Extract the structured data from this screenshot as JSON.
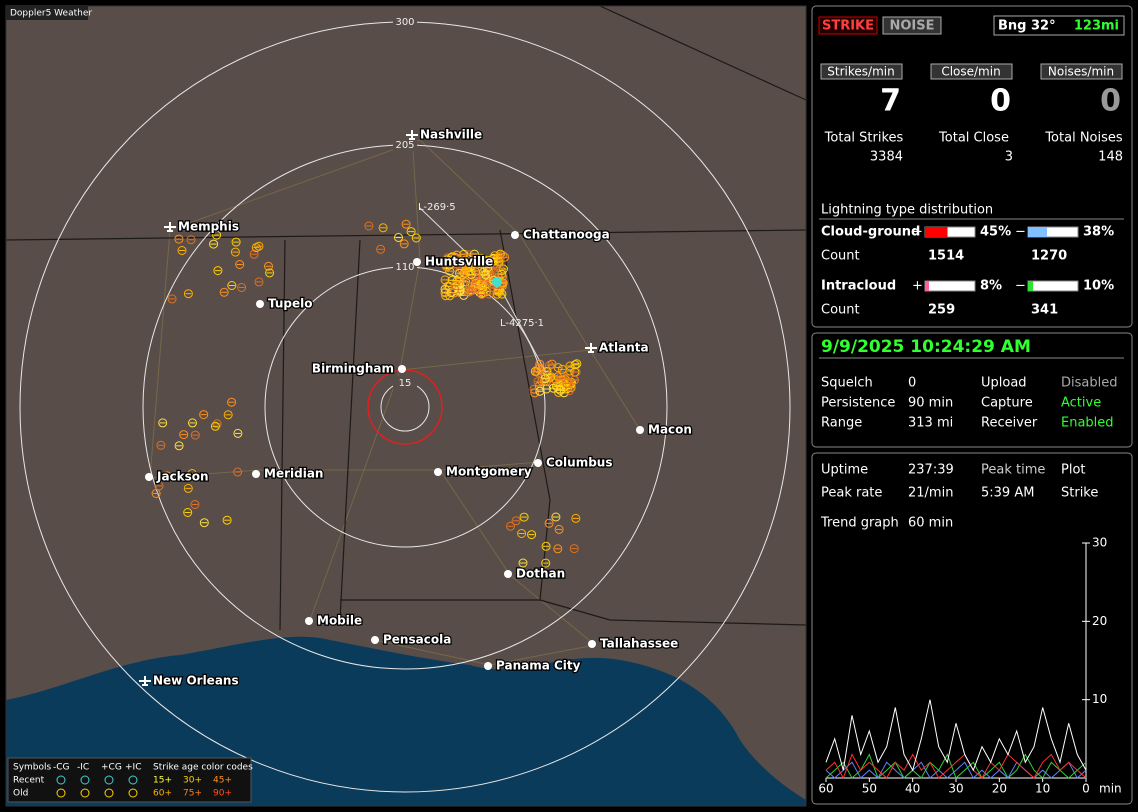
{
  "header": {
    "title": "Doppler5 Weather"
  },
  "map": {
    "rings": [
      "300",
      "205",
      "110",
      "15"
    ],
    "cities": [
      {
        "label": "Nashville",
        "airport": true
      },
      {
        "label": "Memphis",
        "airport": true
      },
      {
        "label": "Chattanooga",
        "airport": false
      },
      {
        "label": "Huntsville",
        "airport": false
      },
      {
        "label": "Tupelo",
        "airport": false
      },
      {
        "label": "Atlanta",
        "airport": true
      },
      {
        "label": "Birmingham",
        "airport": false
      },
      {
        "label": "Macon",
        "airport": false
      },
      {
        "label": "Columbus",
        "airport": false
      },
      {
        "label": "Montgomery",
        "airport": false
      },
      {
        "label": "Jackson",
        "airport": false
      },
      {
        "label": "Meridian",
        "airport": false
      },
      {
        "label": "Dothan",
        "airport": false
      },
      {
        "label": "Mobile",
        "airport": false
      },
      {
        "label": "Pensacola",
        "airport": false
      },
      {
        "label": "Tallahassee",
        "airport": false
      },
      {
        "label": "Panama City",
        "airport": false
      },
      {
        "label": "New Orleans",
        "airport": true
      }
    ],
    "track_labels": [
      "L-269·5",
      "L-4275·1"
    ]
  },
  "legend": {
    "symbols": "Symbols",
    "columns": [
      "-CG",
      "-IC",
      "+CG",
      "+IC"
    ],
    "age_title": "Strike age color codes",
    "rows": [
      {
        "label": "Recent",
        "ages": [
          "15+",
          "30+",
          "45+"
        ]
      },
      {
        "label": "Old",
        "ages": [
          "60+",
          "75+",
          "90+"
        ]
      }
    ]
  },
  "status": {
    "buttons": [
      "STRIKE",
      "NOISE"
    ],
    "bearing": "Bng 32°",
    "distance": "123mi"
  },
  "rates": [
    {
      "label": "Strikes/min",
      "value": 7
    },
    {
      "label": "Close/min",
      "value": 0
    },
    {
      "label": "Noises/min",
      "value": 0
    }
  ],
  "totals": [
    {
      "label": "Total Strikes",
      "value": 3384
    },
    {
      "label": "Total Close",
      "value": 3
    },
    {
      "label": "Total Noises",
      "value": 148
    }
  ],
  "distribution": {
    "title": "Lightning type distribution",
    "count_label": "Count",
    "plus": "+",
    "minus": "−",
    "rows": [
      {
        "label": "Cloud-ground",
        "pos": {
          "value": 45,
          "label": "45%"
        },
        "neg": {
          "value": 38,
          "label": "38%"
        },
        "pos_count": 1514,
        "neg_count": 1270
      },
      {
        "label": "Intracloud",
        "pos": {
          "value": 8,
          "label": "8%"
        },
        "neg": {
          "value": 10,
          "label": "10%"
        },
        "pos_count": 259,
        "neg_count": 341
      }
    ]
  },
  "clock": "9/9/2025 10:24:29 AM",
  "settings": [
    [
      "Squelch",
      "0",
      "Upload",
      "Disabled"
    ],
    [
      "Persistence",
      "90 min",
      "Capture",
      "Active"
    ],
    [
      "Range",
      "313 mi",
      "Receiver",
      "Enabled"
    ]
  ],
  "stats": [
    [
      "Uptime",
      "237:39",
      "Peak time",
      "Plot"
    ],
    [
      "Peak rate",
      "21/min",
      "5:39 AM",
      "Strike"
    ]
  ],
  "trend_label": [
    "Trend graph",
    "60 min"
  ],
  "trend": {
    "xlim": [
      60,
      0
    ],
    "ylim": [
      0,
      30
    ],
    "xticks": [
      60,
      50,
      40,
      30,
      20,
      10,
      0
    ],
    "yticks": [
      30,
      20,
      10
    ],
    "x_unit": "min",
    "x": [
      60,
      58,
      56,
      54,
      52,
      50,
      48,
      46,
      44,
      42,
      40,
      38,
      36,
      34,
      32,
      30,
      28,
      26,
      24,
      22,
      20,
      18,
      16,
      14,
      12,
      10,
      8,
      6,
      4,
      2,
      0
    ],
    "series": [
      {
        "color": "#ffffff",
        "values": [
          2,
          5,
          1,
          8,
          3,
          6,
          2,
          4,
          9,
          3,
          1,
          5,
          10,
          4,
          2,
          7,
          3,
          1,
          4,
          2,
          5,
          3,
          6,
          2,
          4,
          9,
          5,
          2,
          7,
          3,
          1
        ]
      },
      {
        "color": "#ff3030",
        "values": [
          1,
          2,
          0,
          3,
          1,
          2,
          1,
          0,
          2,
          1,
          3,
          1,
          2,
          0,
          1,
          2,
          3,
          1,
          0,
          2,
          1,
          3,
          2,
          1,
          0,
          2,
          3,
          1,
          2,
          1,
          0
        ]
      },
      {
        "color": "#30d030",
        "values": [
          0,
          1,
          2,
          0,
          1,
          3,
          0,
          1,
          2,
          0,
          1,
          0,
          2,
          1,
          3,
          0,
          1,
          2,
          0,
          1,
          2,
          0,
          1,
          3,
          1,
          0,
          2,
          1,
          0,
          1,
          2
        ]
      },
      {
        "color": "#6080ff",
        "values": [
          1,
          0,
          1,
          2,
          0,
          1,
          0,
          2,
          1,
          0,
          1,
          2,
          0,
          1,
          0,
          1,
          2,
          0,
          1,
          0,
          1,
          0,
          2,
          1,
          0,
          1,
          0,
          1,
          2,
          0,
          1
        ]
      }
    ]
  }
}
